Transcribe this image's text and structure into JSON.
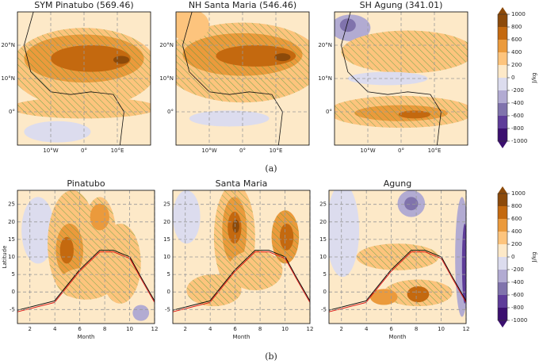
{
  "top": {
    "panels": [
      {
        "title": "SYM Pinatubo (569.46)"
      },
      {
        "title": "NH Santa Maria (546.46)"
      },
      {
        "title": "SH Agung (341.01)"
      }
    ],
    "xlim": [
      -20,
      20
    ],
    "ylim": [
      -10,
      30
    ],
    "xticks": [
      {
        "value": -10,
        "label": "10°W"
      },
      {
        "value": 0,
        "label": "0°"
      },
      {
        "value": 10,
        "label": "10°E"
      }
    ],
    "yticks": [
      {
        "value": 20,
        "label": "20°N"
      },
      {
        "value": 10,
        "label": "10°N"
      },
      {
        "value": 0,
        "label": "0°"
      }
    ],
    "caption": "(a)"
  },
  "bottom": {
    "panels": [
      {
        "title": "Pinatubo"
      },
      {
        "title": "Santa Maria"
      },
      {
        "title": "Agung"
      }
    ],
    "xlim": [
      1,
      12
    ],
    "ylim": [
      -9,
      29
    ],
    "xlabel": "Month",
    "ylabel": "Latitude",
    "xticks": [
      2,
      4,
      6,
      8,
      10,
      12
    ],
    "yticks": [
      25,
      20,
      15,
      10,
      5,
      0,
      -5
    ],
    "caption": "(b)"
  },
  "colorbar": {
    "label": "J/kg",
    "lim": [
      -1000,
      1000
    ],
    "ticks": [
      1000,
      800,
      600,
      400,
      200,
      0,
      -200,
      -400,
      -600,
      -800,
      -1000
    ],
    "colors": [
      "#3b0f6f",
      "#5e3c99",
      "#8073ac",
      "#b2abd2",
      "#dcdcee",
      "#fde9c8",
      "#fdc47d",
      "#eb9a3c",
      "#c4690f",
      "#8c4a0a"
    ]
  }
}
